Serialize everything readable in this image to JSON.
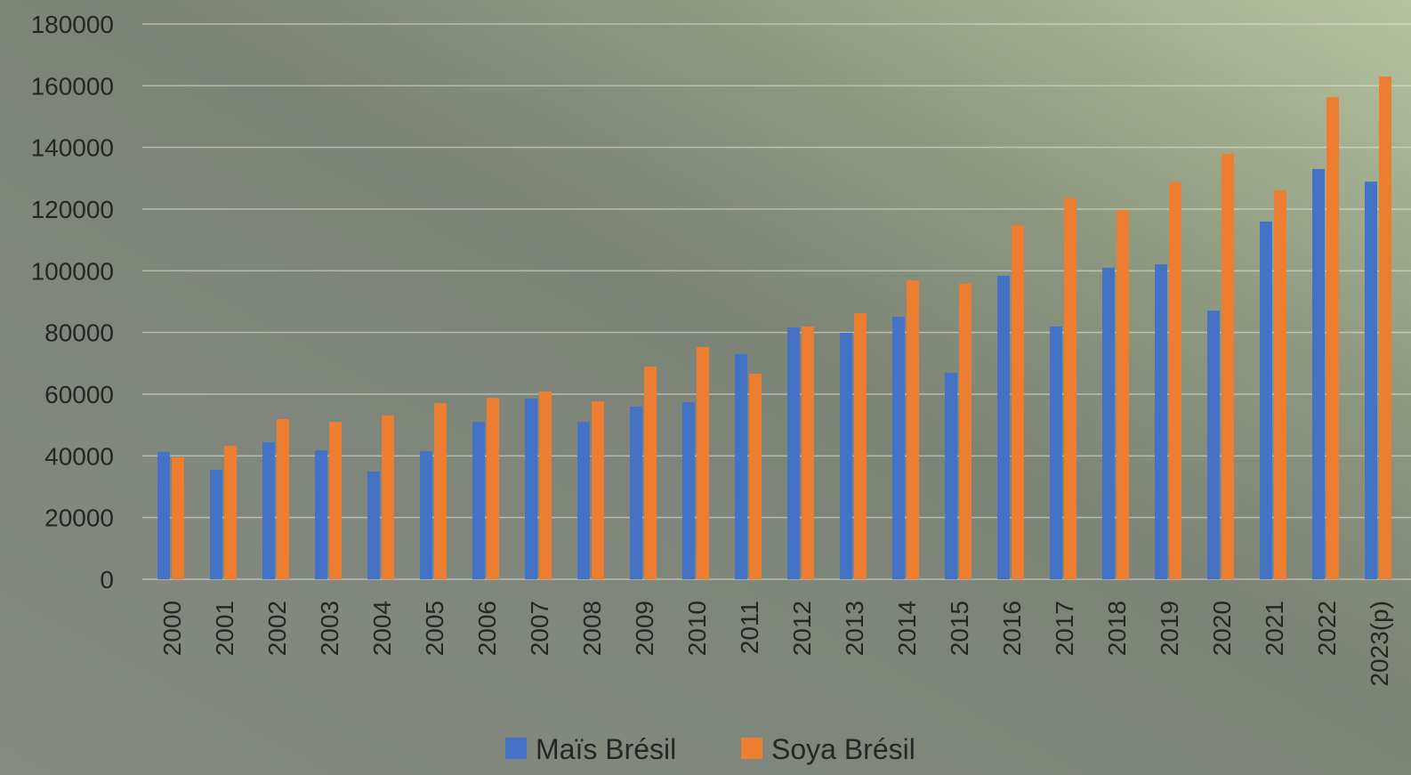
{
  "chart_data": {
    "type": "bar",
    "categories": [
      "2000",
      "2001",
      "2002",
      "2003",
      "2004",
      "2005",
      "2006",
      "2007",
      "2008",
      "2009",
      "2010",
      "2011",
      "2012",
      "2013",
      "2014",
      "2015",
      "2016",
      "2017",
      "2018",
      "2019",
      "2020",
      "2021",
      "2022",
      "2023(p)"
    ],
    "series": [
      {
        "name": "Maïs Brésil",
        "color": "#4472c4",
        "values": [
          41300,
          35500,
          44400,
          41800,
          34900,
          41500,
          51000,
          58600,
          51000,
          56000,
          57400,
          73000,
          81600,
          79900,
          85100,
          66900,
          98400,
          81900,
          101000,
          102100,
          87100,
          116000,
          133000,
          128900
        ]
      },
      {
        "name": "Soya Brésil",
        "color": "#ed7d31",
        "values": [
          39500,
          43300,
          51900,
          51000,
          53100,
          57100,
          58800,
          60900,
          57700,
          68900,
          75300,
          66600,
          81900,
          86200,
          96900,
          95800,
          114800,
          123500,
          119700,
          128700,
          137900,
          126100,
          156300,
          163000
        ]
      }
    ],
    "ylim": [
      0,
      180000
    ],
    "yticks": [
      0,
      20000,
      40000,
      60000,
      80000,
      100000,
      120000,
      140000,
      160000,
      180000
    ],
    "grid": true,
    "legend": "bottom"
  }
}
